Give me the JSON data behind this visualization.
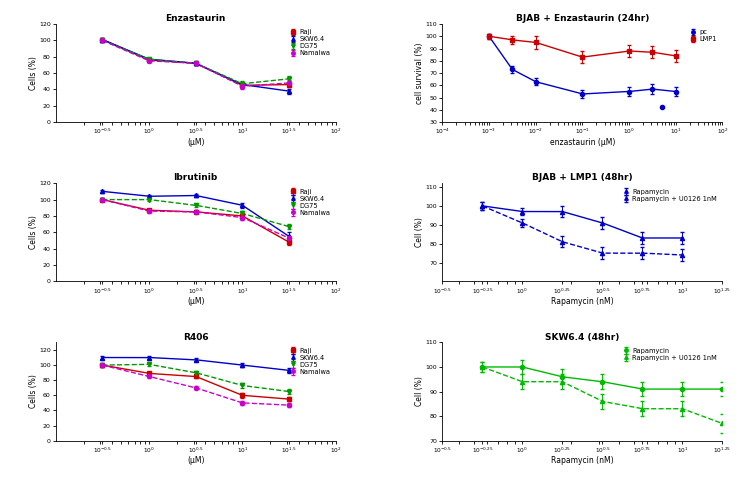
{
  "fig_bg": "#ffffff",
  "subplot_bg": "#ffffff",
  "panel1": {
    "title": "Enzastaurin",
    "xlabel": "(μM)",
    "ylabel": "Cells (%)",
    "xlim_exp": [
      -1.0,
      2.0
    ],
    "ylim": [
      0,
      120
    ],
    "yticks": [
      0,
      20,
      40,
      60,
      80,
      100,
      120
    ],
    "xticks_exp": [
      -0.5,
      0.0,
      0.5,
      1.0,
      1.5,
      2.0
    ],
    "series": [
      {
        "label": "Raji",
        "color": "#cc0000",
        "marker": "s",
        "linestyle": "-",
        "x": [
          -0.5,
          0.0,
          0.5,
          1.0,
          1.5
        ],
        "y": [
          101,
          76,
          72,
          45,
          46
        ],
        "yerr": [
          2,
          2,
          2,
          3,
          3
        ]
      },
      {
        "label": "SKW6.4",
        "color": "#0000cc",
        "marker": "^",
        "linestyle": "-",
        "x": [
          -0.5,
          0.0,
          0.5,
          1.0,
          1.5
        ],
        "y": [
          101,
          77,
          72,
          46,
          38
        ],
        "yerr": [
          2,
          2,
          2,
          3,
          3
        ]
      },
      {
        "label": "DG75",
        "color": "#009900",
        "marker": "v",
        "linestyle": "--",
        "x": [
          -0.5,
          0.0,
          0.5,
          1.0,
          1.5
        ],
        "y": [
          100,
          77,
          72,
          47,
          53
        ],
        "yerr": [
          2,
          2,
          2,
          3,
          3
        ]
      },
      {
        "label": "Namalwa",
        "color": "#cc00cc",
        "marker": "o",
        "linestyle": "--",
        "x": [
          -0.5,
          0.0,
          0.5,
          1.0,
          1.5
        ],
        "y": [
          100,
          75,
          72,
          44,
          48
        ],
        "yerr": [
          2,
          2,
          2,
          3,
          3
        ]
      }
    ]
  },
  "panel2": {
    "title": "BJAB + Enzastaurin (24hr)",
    "xlabel": "enzastaurin (μM)",
    "ylabel": "cell survival (%)",
    "xlim_exp": [
      -4,
      2
    ],
    "ylim": [
      30,
      110
    ],
    "yticks": [
      30,
      40,
      50,
      60,
      70,
      80,
      90,
      100,
      110
    ],
    "xticks_exp": [
      -4,
      -3,
      -2,
      -1,
      0,
      1,
      2
    ],
    "series": [
      {
        "label": "pc",
        "color": "#0000cc",
        "marker": "o",
        "linestyle": "-",
        "x": [
          -3,
          -2.5,
          -2,
          -1,
          0,
          0.5,
          1
        ],
        "y": [
          100,
          73,
          63,
          53,
          55,
          57,
          55
        ],
        "yerr": [
          2,
          3,
          3,
          3,
          4,
          4,
          4
        ]
      },
      {
        "label": "LMP1",
        "color": "#cc0000",
        "marker": "s",
        "linestyle": "-",
        "x": [
          -3,
          -2.5,
          -2,
          -1,
          0,
          0.5,
          1
        ],
        "y": [
          100,
          97,
          95,
          83,
          88,
          87,
          84
        ],
        "yerr": [
          2,
          3,
          5,
          5,
          5,
          5,
          5
        ]
      }
    ],
    "extra_point": {
      "color": "#0000cc",
      "x_exp": 0.7,
      "y": 42
    }
  },
  "panel3": {
    "title": "Ibrutinib",
    "xlabel": "(μM)",
    "ylabel": "Cells (%)",
    "xlim_exp": [
      -1.0,
      2.0
    ],
    "ylim": [
      0,
      120
    ],
    "yticks": [
      0,
      20,
      40,
      60,
      80,
      100,
      120
    ],
    "xticks_exp": [
      -0.5,
      0.0,
      0.5,
      1.0,
      1.5,
      2.0
    ],
    "series": [
      {
        "label": "Raji",
        "color": "#cc0000",
        "marker": "s",
        "linestyle": "-",
        "x": [
          -0.5,
          0.0,
          0.5,
          1.0,
          1.5
        ],
        "y": [
          100,
          87,
          85,
          80,
          48
        ],
        "yerr": [
          2,
          2,
          2,
          3,
          4
        ]
      },
      {
        "label": "SKW6.4",
        "color": "#0000cc",
        "marker": "^",
        "linestyle": "-",
        "x": [
          -0.5,
          0.0,
          0.5,
          1.0,
          1.5
        ],
        "y": [
          110,
          104,
          105,
          93,
          55
        ],
        "yerr": [
          2,
          2,
          2,
          3,
          5
        ]
      },
      {
        "label": "DG75",
        "color": "#009900",
        "marker": "v",
        "linestyle": "--",
        "x": [
          -0.5,
          0.0,
          0.5,
          1.0,
          1.5
        ],
        "y": [
          100,
          100,
          93,
          83,
          67
        ],
        "yerr": [
          2,
          2,
          2,
          3,
          3
        ]
      },
      {
        "label": "Namalwa",
        "color": "#cc00cc",
        "marker": "o",
        "linestyle": "--",
        "x": [
          -0.5,
          0.0,
          0.5,
          1.0,
          1.5
        ],
        "y": [
          100,
          86,
          85,
          78,
          53
        ],
        "yerr": [
          2,
          2,
          2,
          3,
          3
        ]
      }
    ]
  },
  "panel4": {
    "title": "BJAB + LMP1 (48hr)",
    "xlabel": "Rapamycin (nM)",
    "ylabel": "Cell (%)",
    "xlim_exp": [
      -0.5,
      1.25
    ],
    "ylim": [
      60,
      112
    ],
    "yticks": [
      70,
      80,
      90,
      100,
      110
    ],
    "xticks_exp": [
      -0.5,
      -0.25,
      0.0,
      0.25,
      0.5,
      0.75,
      1.0,
      1.25
    ],
    "series": [
      {
        "label": "Rapamycin",
        "color": "#0000cc",
        "marker": "^",
        "linestyle": "-",
        "x": [
          -0.25,
          0.0,
          0.25,
          0.5,
          0.75,
          1.0
        ],
        "y": [
          100,
          97,
          97,
          91,
          83,
          83
        ],
        "yerr": [
          2,
          2,
          3,
          3,
          3,
          3
        ]
      },
      {
        "label": "Rapamycin + U0126 1nM",
        "color": "#0000cc",
        "marker": "^",
        "linestyle": "--",
        "x": [
          -0.25,
          0.0,
          0.25,
          0.5,
          0.75,
          1.0
        ],
        "y": [
          100,
          91,
          81,
          75,
          75,
          74
        ],
        "yerr": [
          2,
          2,
          3,
          3,
          3,
          3
        ]
      }
    ]
  },
  "panel5": {
    "title": "R406",
    "xlabel": "(μM)",
    "ylabel": "Cells (%)",
    "xlim_exp": [
      -1.0,
      2.0
    ],
    "ylim": [
      0,
      130
    ],
    "yticks": [
      0,
      20,
      40,
      60,
      80,
      100,
      120
    ],
    "xticks_exp": [
      -0.5,
      0.0,
      0.5,
      1.0,
      1.5,
      2.0
    ],
    "series": [
      {
        "label": "Raji",
        "color": "#cc0000",
        "marker": "s",
        "linestyle": "-",
        "x": [
          -0.5,
          0.0,
          0.5,
          1.0,
          1.5
        ],
        "y": [
          100,
          89,
          85,
          60,
          55
        ],
        "yerr": [
          2,
          2,
          2,
          3,
          3
        ]
      },
      {
        "label": "SKW6.4",
        "color": "#0000cc",
        "marker": "^",
        "linestyle": "-",
        "x": [
          -0.5,
          0.0,
          0.5,
          1.0,
          1.5
        ],
        "y": [
          110,
          110,
          107,
          100,
          93
        ],
        "yerr": [
          2,
          2,
          2,
          3,
          3
        ]
      },
      {
        "label": "DG75",
        "color": "#009900",
        "marker": "v",
        "linestyle": "--",
        "x": [
          -0.5,
          0.0,
          0.5,
          1.0,
          1.5
        ],
        "y": [
          100,
          101,
          90,
          73,
          65
        ],
        "yerr": [
          2,
          2,
          2,
          3,
          3
        ]
      },
      {
        "label": "Namalwa",
        "color": "#cc00cc",
        "marker": "o",
        "linestyle": "--",
        "x": [
          -0.5,
          0.0,
          0.5,
          1.0,
          1.5
        ],
        "y": [
          100,
          85,
          70,
          50,
          47
        ],
        "yerr": [
          2,
          2,
          2,
          3,
          3
        ]
      }
    ]
  },
  "panel6": {
    "title": "SKW6.4 (48hr)",
    "xlabel": "Rapamycin (nM)",
    "ylabel": "Cell (%)",
    "xlim_exp": [
      -0.5,
      1.25
    ],
    "ylim": [
      70,
      110
    ],
    "yticks": [
      70,
      80,
      90,
      100,
      110
    ],
    "xticks_exp": [
      -0.5,
      -0.25,
      0.0,
      0.25,
      0.5,
      0.75,
      1.0,
      1.25
    ],
    "series": [
      {
        "label": "Rapamycin",
        "color": "#00bb00",
        "marker": "o",
        "linestyle": "-",
        "x": [
          -0.25,
          0.0,
          0.25,
          0.5,
          0.75,
          1.0,
          1.25
        ],
        "y": [
          100,
          100,
          96,
          94,
          91,
          91,
          91
        ],
        "yerr": [
          2,
          3,
          3,
          3,
          3,
          3,
          3
        ]
      },
      {
        "label": "Rapamycin + U0126 1nM",
        "color": "#00bb00",
        "marker": "^",
        "linestyle": "--",
        "x": [
          -0.25,
          0.0,
          0.25,
          0.5,
          0.75,
          1.0,
          1.25
        ],
        "y": [
          100,
          94,
          94,
          86,
          83,
          83,
          77
        ],
        "yerr": [
          2,
          3,
          3,
          3,
          3,
          3,
          4
        ]
      }
    ]
  }
}
